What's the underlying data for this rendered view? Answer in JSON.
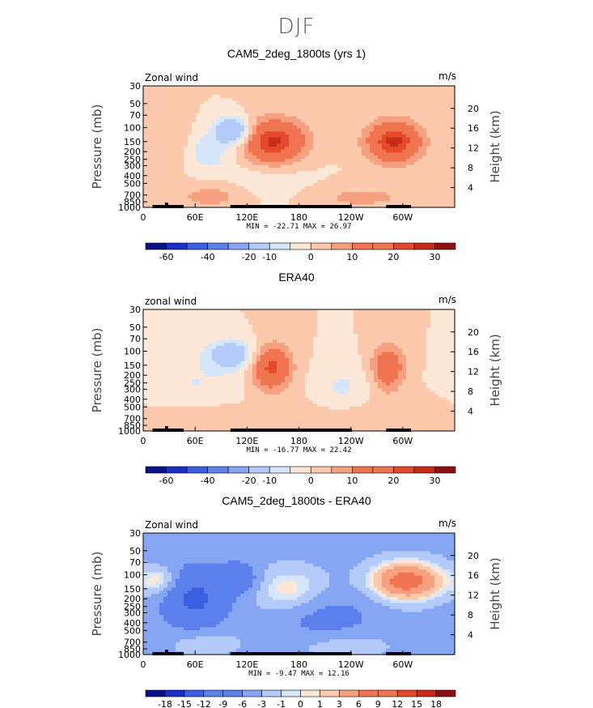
{
  "figure": {
    "title": "DJF"
  },
  "colors": {
    "neg": [
      "#08108a",
      "#1a2fc8",
      "#3a5fe0",
      "#5b80eb",
      "#86a6f4",
      "#b4cbf9",
      "#d6e6fb"
    ],
    "pos": [
      "#fde8d8",
      "#fcc9ad",
      "#f7a07f",
      "#f17451",
      "#e5492c",
      "#c72a18",
      "#8e1010"
    ]
  },
  "chart_data": [
    {
      "type": "heatmap",
      "title": "CAM5_2deg_1800ts (yrs 1)",
      "left_label": "Zonal wind",
      "right_label": "m/s",
      "ylabel": "Pressure (mb)",
      "y2label": "Height (km)",
      "xticks": [
        "0",
        "60E",
        "120E",
        "180",
        "120W",
        "60W"
      ],
      "yticks": [
        "30",
        "50",
        "70",
        "100",
        "150",
        "200",
        "250",
        "300",
        "400",
        "500",
        "700",
        "850",
        "1000"
      ],
      "y2ticks": [
        "20",
        "16",
        "12",
        "8",
        "4"
      ],
      "stats": "MIN = -22.71   MAX =  26.97",
      "colorbar_labels": [
        "-60",
        "-40",
        "-20",
        "-10",
        "0",
        "10",
        "20",
        "30"
      ],
      "colorbar_levels": [
        -70,
        -60,
        -50,
        -40,
        -30,
        -20,
        -10,
        -5,
        0,
        5,
        10,
        15,
        20,
        25,
        30
      ],
      "features": [
        {
          "lon": 150,
          "pres": 150,
          "peak": 26.5,
          "sx": 26,
          "sy": 0.45
        },
        {
          "lon": 290,
          "pres": 150,
          "peak": 26.9,
          "sx": 22,
          "sy": 0.42
        },
        {
          "lon": 35,
          "pres": 150,
          "peak": 5,
          "sx": 15,
          "sy": 0.5
        },
        {
          "lon": 105,
          "pres": 110,
          "peak": -22.7,
          "sx": 15,
          "sy": 0.28
        },
        {
          "lon": 75,
          "pres": 200,
          "peak": -8,
          "sx": 20,
          "sy": 0.4
        },
        {
          "lon": 140,
          "pres": 550,
          "peak": -5,
          "sx": 40,
          "sy": 0.5
        },
        {
          "lon": 85,
          "pres": 720,
          "peak": 8,
          "sx": 35,
          "sy": 0.3
        },
        {
          "lon": 250,
          "pres": 750,
          "peak": 6,
          "sx": 60,
          "sy": 0.3
        }
      ]
    },
    {
      "type": "heatmap",
      "title": "ERA40",
      "left_label": "zonal wind",
      "right_label": "m/s",
      "ylabel": "Pressure (mb)",
      "y2label": "Height (km)",
      "xticks": [
        "0",
        "60E",
        "120E",
        "180",
        "120W",
        "60W"
      ],
      "yticks": [
        "30",
        "50",
        "70",
        "100",
        "150",
        "200",
        "250",
        "300",
        "400",
        "500",
        "700",
        "850",
        "1000"
      ],
      "y2ticks": [
        "20",
        "16",
        "12",
        "8",
        "4"
      ],
      "stats": "MIN = -16.77   MAX =  22.42",
      "colorbar_labels": [
        "-60",
        "-40",
        "-20",
        "-10",
        "0",
        "10",
        "20",
        "30"
      ],
      "colorbar_levels": [
        -70,
        -60,
        -50,
        -40,
        -30,
        -20,
        -10,
        -5,
        0,
        5,
        10,
        15,
        20,
        25,
        30
      ],
      "features": [
        {
          "lon": 148,
          "pres": 160,
          "peak": 22.4,
          "sx": 16,
          "sy": 0.45
        },
        {
          "lon": 283,
          "pres": 160,
          "peak": 18,
          "sx": 13,
          "sy": 0.45
        },
        {
          "lon": 102,
          "pres": 110,
          "peak": -16.8,
          "sx": 20,
          "sy": 0.3
        },
        {
          "lon": 60,
          "pres": 250,
          "peak": -5,
          "sx": 35,
          "sy": 0.5
        },
        {
          "lon": 230,
          "pres": 300,
          "peak": -6,
          "sx": 22,
          "sy": 0.5
        },
        {
          "lon": 80,
          "pres": 750,
          "peak": 5,
          "sx": 40,
          "sy": 0.3
        },
        {
          "lon": 250,
          "pres": 700,
          "peak": 4,
          "sx": 60,
          "sy": 0.4
        }
      ]
    },
    {
      "type": "heatmap",
      "title": "CAM5_2deg_1800ts - ERA40",
      "left_label": "Zonal wind",
      "right_label": "m/s",
      "ylabel": "Pressure (mb)",
      "y2label": "Height (km)",
      "xticks": [
        "0",
        "60E",
        "120E",
        "180",
        "120W",
        "60W"
      ],
      "yticks": [
        "30",
        "50",
        "70",
        "100",
        "150",
        "200",
        "250",
        "300",
        "400",
        "500",
        "700",
        "850",
        "1000"
      ],
      "y2ticks": [
        "20",
        "16",
        "12",
        "8",
        "4"
      ],
      "stats": "MIN =  -9.47   MAX =  12.16",
      "colorbar_labels": [
        "-18",
        "-15",
        "-12",
        "-9",
        "-6",
        "-3",
        "-1",
        "0",
        "1",
        "3",
        "6",
        "9",
        "12",
        "15",
        "18"
      ],
      "colorbar_levels": [
        -21,
        -18,
        -15,
        -12,
        -9,
        -6,
        -3,
        -1,
        0,
        1,
        3,
        6,
        9,
        12,
        15,
        18
      ],
      "features": [
        {
          "lon": 305,
          "pres": 120,
          "peak": 12.1,
          "sx": 30,
          "sy": 0.4
        },
        {
          "lon": 170,
          "pres": 160,
          "peak": 5,
          "sx": 30,
          "sy": 0.5
        },
        {
          "lon": 20,
          "pres": 120,
          "peak": 5,
          "sx": 15,
          "sy": 0.3
        },
        {
          "lon": 60,
          "pres": 200,
          "peak": -9.4,
          "sx": 25,
          "sy": 0.6
        },
        {
          "lon": 110,
          "pres": 110,
          "peak": -7,
          "sx": 15,
          "sy": 0.3
        },
        {
          "lon": 210,
          "pres": 350,
          "peak": -4,
          "sx": 40,
          "sy": 0.5
        },
        {
          "lon": 230,
          "pres": 750,
          "peak": 3,
          "sx": 40,
          "sy": 0.3
        },
        {
          "lon": 70,
          "pres": 700,
          "peak": 3,
          "sx": 30,
          "sy": 0.3
        }
      ],
      "background": -4
    }
  ]
}
